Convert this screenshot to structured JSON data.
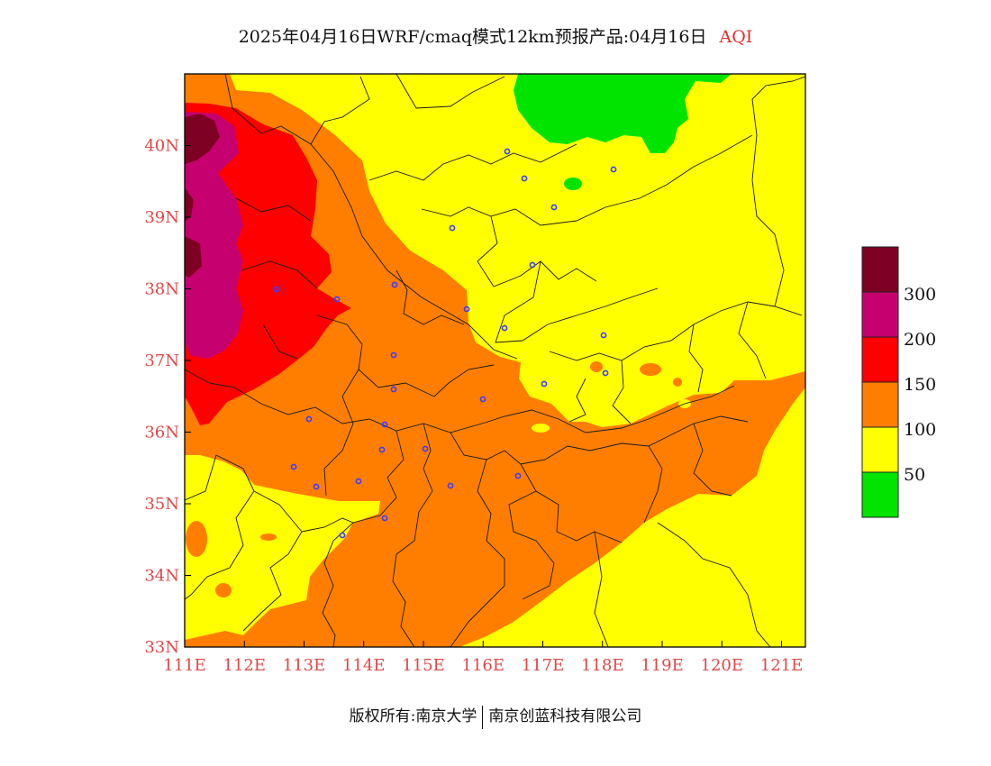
{
  "title": {
    "main": "2025年04月16日WRF/cmaq模式12km预报产品:04月16日",
    "product": "AQI"
  },
  "axes": {
    "lat_labels": [
      "33N",
      "34N",
      "35N",
      "36N",
      "37N",
      "38N",
      "39N",
      "40N"
    ],
    "lon_labels": [
      "111E",
      "112E",
      "113E",
      "114E",
      "115E",
      "116E",
      "117E",
      "118E",
      "119E",
      "120E",
      "121E"
    ],
    "lat_range": [
      33,
      41
    ],
    "lon_range": [
      111,
      121.4
    ]
  },
  "legend": {
    "labels": [
      "50",
      "100",
      "150",
      "200",
      "300"
    ],
    "colors": {
      "good": "#00e400",
      "moderate": "#ffff00",
      "usg": "#ff7e00",
      "unhealthy": "#ff0000",
      "very_unhealthy": "#c6006e",
      "hazardous": "#7e0023"
    }
  },
  "footer": {
    "copyright": "版权所有:南京大学",
    "company": "南京创蓝科技有限公司"
  }
}
